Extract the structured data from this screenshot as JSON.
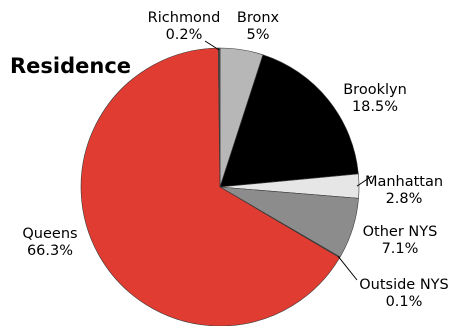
{
  "chart_data": {
    "type": "pie",
    "title": "Residence",
    "start": "top",
    "direction": "clockwise",
    "slices": [
      {
        "name": "Bronx",
        "value": 5,
        "value_label": "5%",
        "color": "#b7b7b7"
      },
      {
        "name": "Brooklyn",
        "value": 18.5,
        "value_label": "18.5%",
        "color": "#000000"
      },
      {
        "name": "Manhattan",
        "value": 2.8,
        "value_label": "2.8%",
        "color": "#e6e6e6"
      },
      {
        "name": "Other NYS",
        "value": 7.1,
        "value_label": "7.1%",
        "color": "#8c8c8c"
      },
      {
        "name": "Outside NYS",
        "value": 0.1,
        "value_label": "0.1%",
        "color": "#555555"
      },
      {
        "name": "Queens",
        "value": 66.3,
        "value_label": "66.3%",
        "color": "#e03c31"
      },
      {
        "name": "Richmond",
        "value": 0.2,
        "value_label": "0.2%",
        "color": "#4a4a4a"
      }
    ]
  }
}
